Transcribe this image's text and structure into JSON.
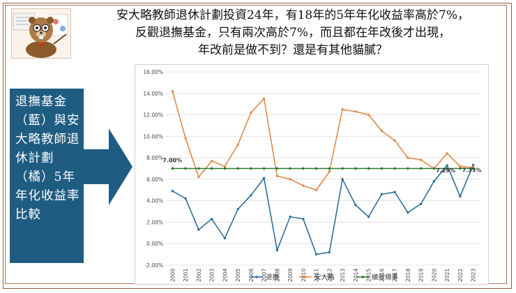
{
  "headline": {
    "line1": "安大略教師退休計劃投資24年，有18年的5年年化收益率高於7%，",
    "line2": "反觀退撫基金，只有兩次高於7%，而且都在年改後才出現，",
    "line3": "年改前是做不到？還是有其他貓膩？"
  },
  "sidebar": {
    "text": "退撫基金（藍）與安大略教師退休計劃（橘）5年年化收益率比較"
  },
  "avatar": {
    "icon": "beaver-teacher-icon"
  },
  "colors": {
    "accent_box": "#1f5c82",
    "blue_series": "#2e6e99",
    "orange_series": "#e0894a",
    "green_series": "#2b7a2b"
  },
  "chart_data": {
    "type": "line",
    "categories": [
      "2000",
      "2001",
      "2002",
      "2003",
      "2004",
      "2005",
      "2006",
      "2007",
      "2008",
      "2009",
      "2010",
      "2011",
      "2012",
      "2013",
      "2014",
      "2015",
      "2016",
      "2017",
      "2018",
      "2019",
      "2020",
      "2021",
      "2022",
      "2023"
    ],
    "ylim": [
      -2,
      16
    ],
    "yticks": [
      "-2.00%",
      "0.00%",
      "2.00%",
      "4.00%",
      "6.00%",
      "8.00%",
      "10.00%",
      "12.00%",
      "14.00%",
      "16.00%"
    ],
    "series": [
      {
        "name": "退撫",
        "color": "#2e6e99",
        "values": [
          4.9,
          4.2,
          1.3,
          2.3,
          0.5,
          3.2,
          4.5,
          6.1,
          -0.6,
          2.5,
          2.3,
          -1.0,
          -0.8,
          6.0,
          3.6,
          2.5,
          4.6,
          4.8,
          2.9,
          3.7,
          5.8,
          7.29,
          4.4,
          7.33
        ]
      },
      {
        "name": "安大略",
        "color": "#e0894a",
        "values": [
          14.2,
          9.8,
          6.2,
          7.7,
          7.2,
          9.2,
          12.2,
          13.5,
          6.3,
          6.0,
          5.4,
          5.0,
          6.7,
          12.5,
          12.3,
          12.0,
          10.5,
          9.6,
          8.0,
          7.8,
          7.0,
          8.4,
          7.2,
          7.1
        ]
      },
      {
        "name": "績效標準",
        "color": "#2b7a2b",
        "values": [
          7,
          7,
          7,
          7,
          7,
          7,
          7,
          7,
          7,
          7,
          7,
          7,
          7,
          7,
          7,
          7,
          7,
          7,
          7,
          7,
          7,
          7,
          7,
          7
        ]
      }
    ],
    "annotations": [
      {
        "text": "7.00%",
        "category_index": 0,
        "value": 7.0
      },
      {
        "text": "7.29%",
        "category_index": 21,
        "value": 7.29
      },
      {
        "text": "7.33%",
        "category_index": 23,
        "value": 7.33
      }
    ],
    "legend": [
      "退撫",
      "安大略",
      "績效標準"
    ],
    "legend_position": "bottom",
    "grid": true
  }
}
